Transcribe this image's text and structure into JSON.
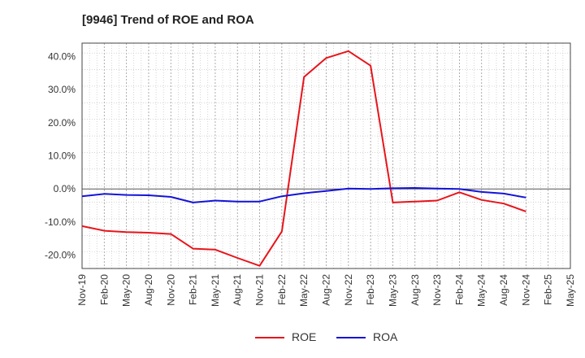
{
  "chart_data": {
    "type": "line",
    "title": "[9946]  Trend of ROE and ROA",
    "categories": [
      "Nov-19",
      "Feb-20",
      "May-20",
      "Aug-20",
      "Nov-20",
      "Feb-21",
      "May-21",
      "Aug-21",
      "Nov-21",
      "Feb-22",
      "May-22",
      "Aug-22",
      "Nov-22",
      "Feb-23",
      "May-23",
      "Aug-23",
      "Nov-23",
      "Feb-24",
      "May-24",
      "Aug-24",
      "Nov-24",
      "Feb-25",
      "May-25"
    ],
    "ylim": [
      -24,
      44
    ],
    "yticks": [
      -20,
      -10,
      0,
      10,
      20,
      30,
      40
    ],
    "ytick_labels": [
      "-20.0%",
      "-10.0%",
      "0.0%",
      "10.0%",
      "20.0%",
      "30.0%",
      "40.0%"
    ],
    "grid": true,
    "legend_position": "bottom",
    "series": [
      {
        "name": "ROE",
        "color": "#e8141b",
        "values": [
          -11.2,
          -12.6,
          -13.0,
          -13.2,
          -13.6,
          -18.0,
          -18.3,
          -20.8,
          -23.2,
          -12.8,
          33.8,
          39.5,
          41.6,
          37.2,
          -4.1,
          -3.8,
          -3.5,
          -1.0,
          -3.3,
          -4.4,
          -6.8,
          null,
          null
        ]
      },
      {
        "name": "ROA",
        "color": "#1414d9",
        "values": [
          -2.2,
          -1.5,
          -1.8,
          -1.9,
          -2.4,
          -4.1,
          -3.5,
          -3.8,
          -3.8,
          -2.2,
          -1.3,
          -0.6,
          0.1,
          0.0,
          0.2,
          0.3,
          0.1,
          0.0,
          -0.9,
          -1.4,
          -2.6,
          null,
          null
        ]
      }
    ]
  }
}
